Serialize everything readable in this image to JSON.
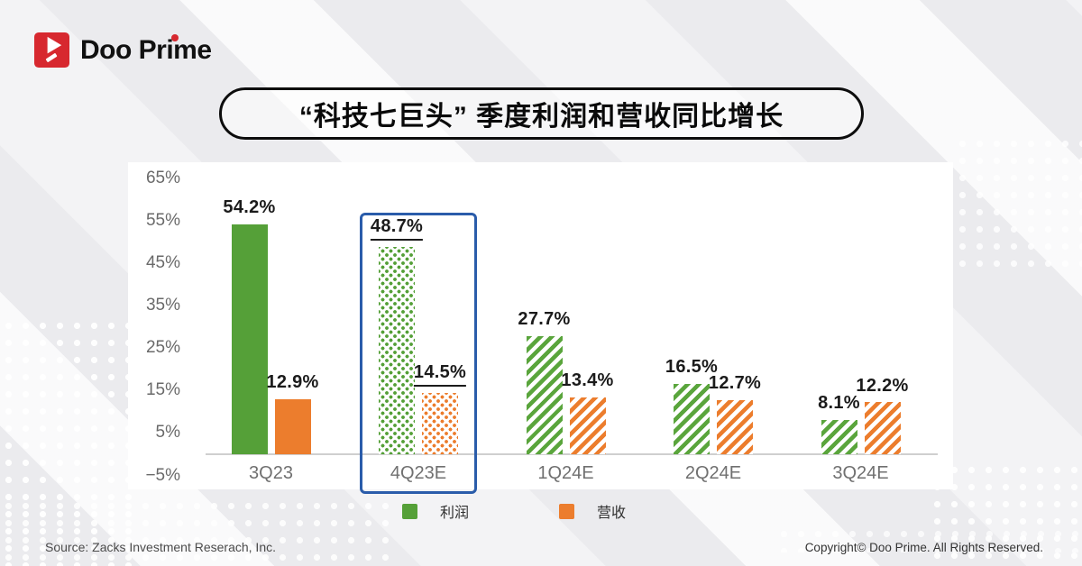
{
  "brand": {
    "logo_text": "Doo Prime",
    "red": "#d7282f"
  },
  "title": "“科技七巨头” 季度利润和营收同比增长",
  "chart_data": {
    "type": "bar",
    "title": "“科技七巨头” 季度利润和营收同比增长",
    "categories": [
      "3Q23",
      "4Q23E",
      "1Q24E",
      "2Q24E",
      "3Q24E"
    ],
    "series": [
      {
        "name": "利润",
        "color_key": "green",
        "color": "#55a038",
        "values": [
          54.2,
          48.7,
          27.7,
          16.5,
          8.1
        ]
      },
      {
        "name": "营收",
        "color_key": "orange",
        "color": "#ec7d2d",
        "values": [
          12.9,
          14.5,
          13.4,
          12.7,
          12.2
        ]
      }
    ],
    "value_labels": [
      [
        "54.2%",
        "48.7%",
        "27.7%",
        "16.5%",
        "8.1%"
      ],
      [
        "12.9%",
        "14.5%",
        "13.4%",
        "12.7%",
        "12.2%"
      ]
    ],
    "fill_styles": [
      "solid",
      "dots",
      "stripes",
      "stripes",
      "stripes"
    ],
    "highlighted_category": "4Q23E",
    "underline_labels_category": "4Q23E",
    "highlight_color": "#2a5caa",
    "y_ticks": [
      {
        "v": 65,
        "label": "65%"
      },
      {
        "v": 55,
        "label": "55%"
      },
      {
        "v": 45,
        "label": "45%"
      },
      {
        "v": 35,
        "label": "35%"
      },
      {
        "v": 25,
        "label": "25%"
      },
      {
        "v": 15,
        "label": "15%"
      },
      {
        "v": 5,
        "label": "5%"
      },
      {
        "v": -5,
        "label": "−5%"
      }
    ],
    "ylim": [
      -5,
      65
    ],
    "grid": false,
    "legend_position": "bottom"
  },
  "footer": {
    "source": "Source: Zacks Investment Reserach, Inc.",
    "copyright": "Copyright© Doo Prime. All Rights Reserved."
  }
}
